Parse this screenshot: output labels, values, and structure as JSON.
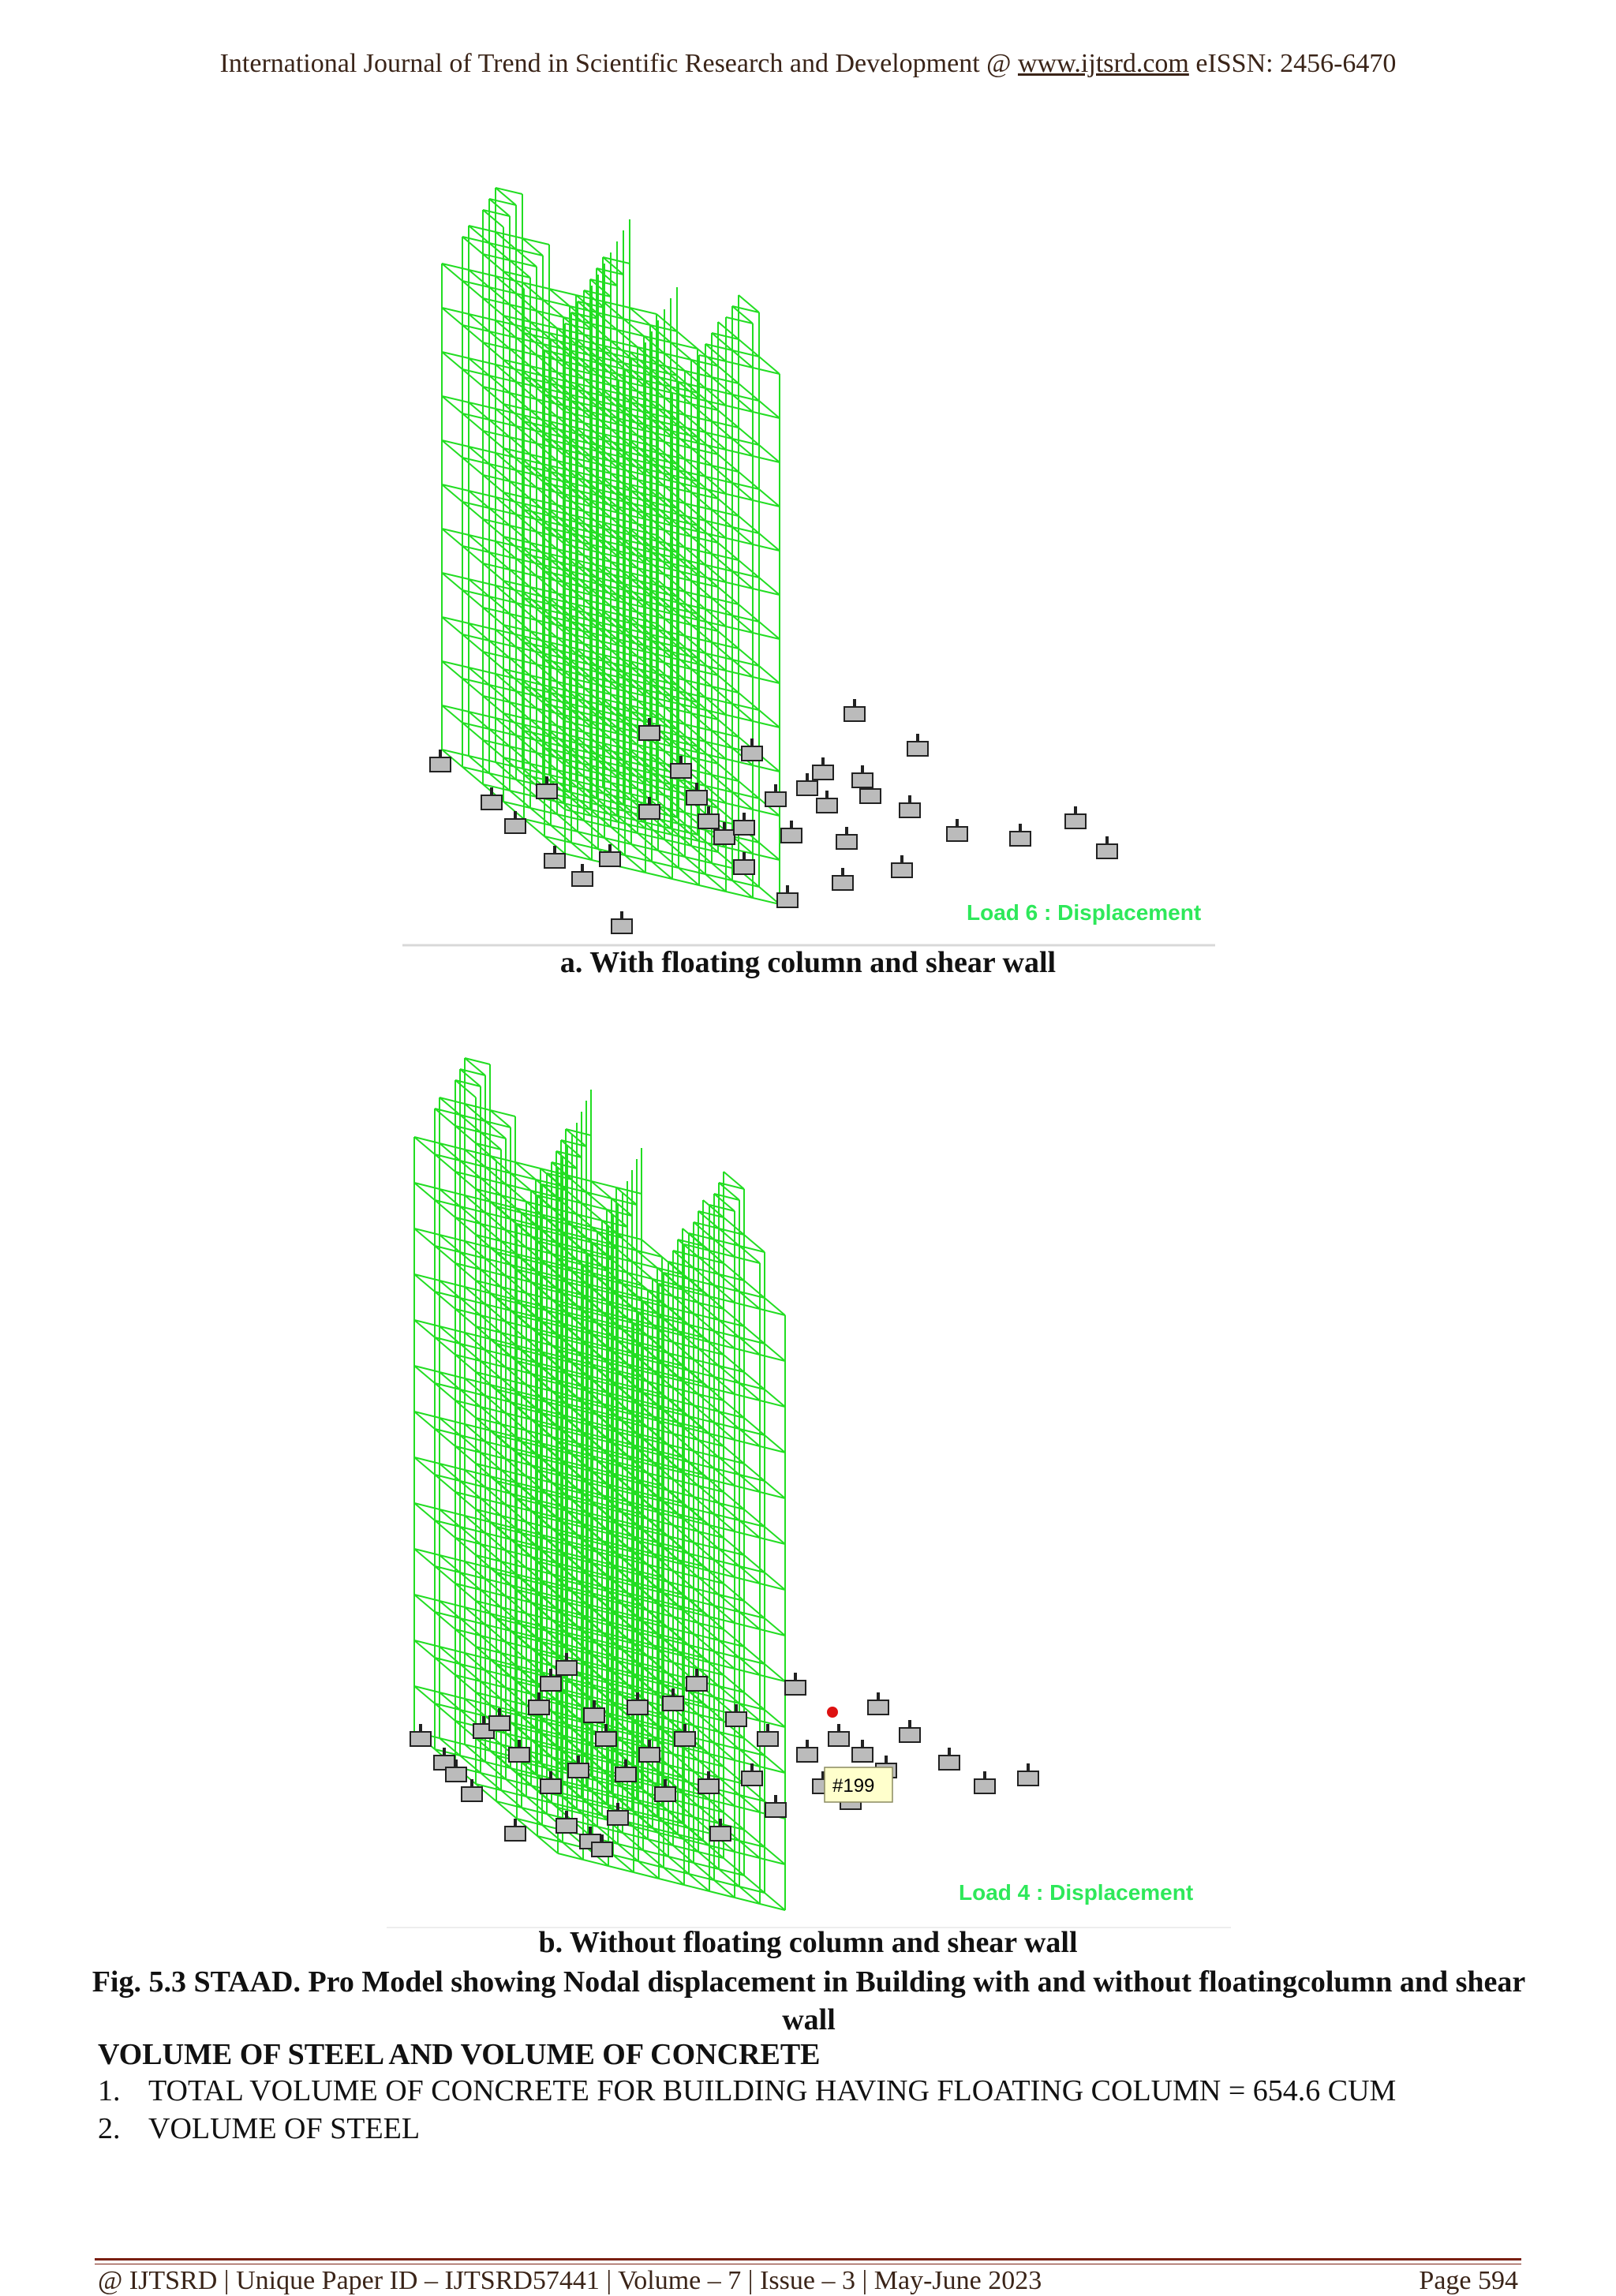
{
  "header": {
    "prefix": "International Journal of Trend in Scientific Research and Development @ ",
    "link": "www.ijtsrd.com",
    "suffix": " eISSN: 2456-6470"
  },
  "figure_a": {
    "load_label": "Load 6 : Displacement",
    "caption": "a. With  floating column and shear wall"
  },
  "figure_b": {
    "load_label": "Load 4 : Displacement",
    "tooltip": "#199",
    "caption": "b.   Without floating column and shear wall"
  },
  "fig_caption": "Fig. 5.3 STAAD. Pro Model showing Nodal displacement in Building with and without floatingcolumn and shear wall",
  "section_heading": "VOLUME OF STEEL AND VOLUME OF CONCRETE",
  "list": [
    {
      "num": "1.",
      "text": "TOTAL VOLUME OF CONCRETE FOR BUILDING HAVING FLOATING COLUMN = 654.6 CUM"
    },
    {
      "num": "2.",
      "text": "VOLUME OF STEEL"
    }
  ],
  "footer": {
    "text": "@ IJTSRD  |  Unique Paper ID – IJTSRD57441   |   Volume – 7   |   Issue – 3   |   May-June 2023",
    "page": "Page 594"
  },
  "colors": {
    "frame": "#22dd22",
    "support": "#222222",
    "label": "#2ee85a",
    "marker": "#dd1111"
  }
}
